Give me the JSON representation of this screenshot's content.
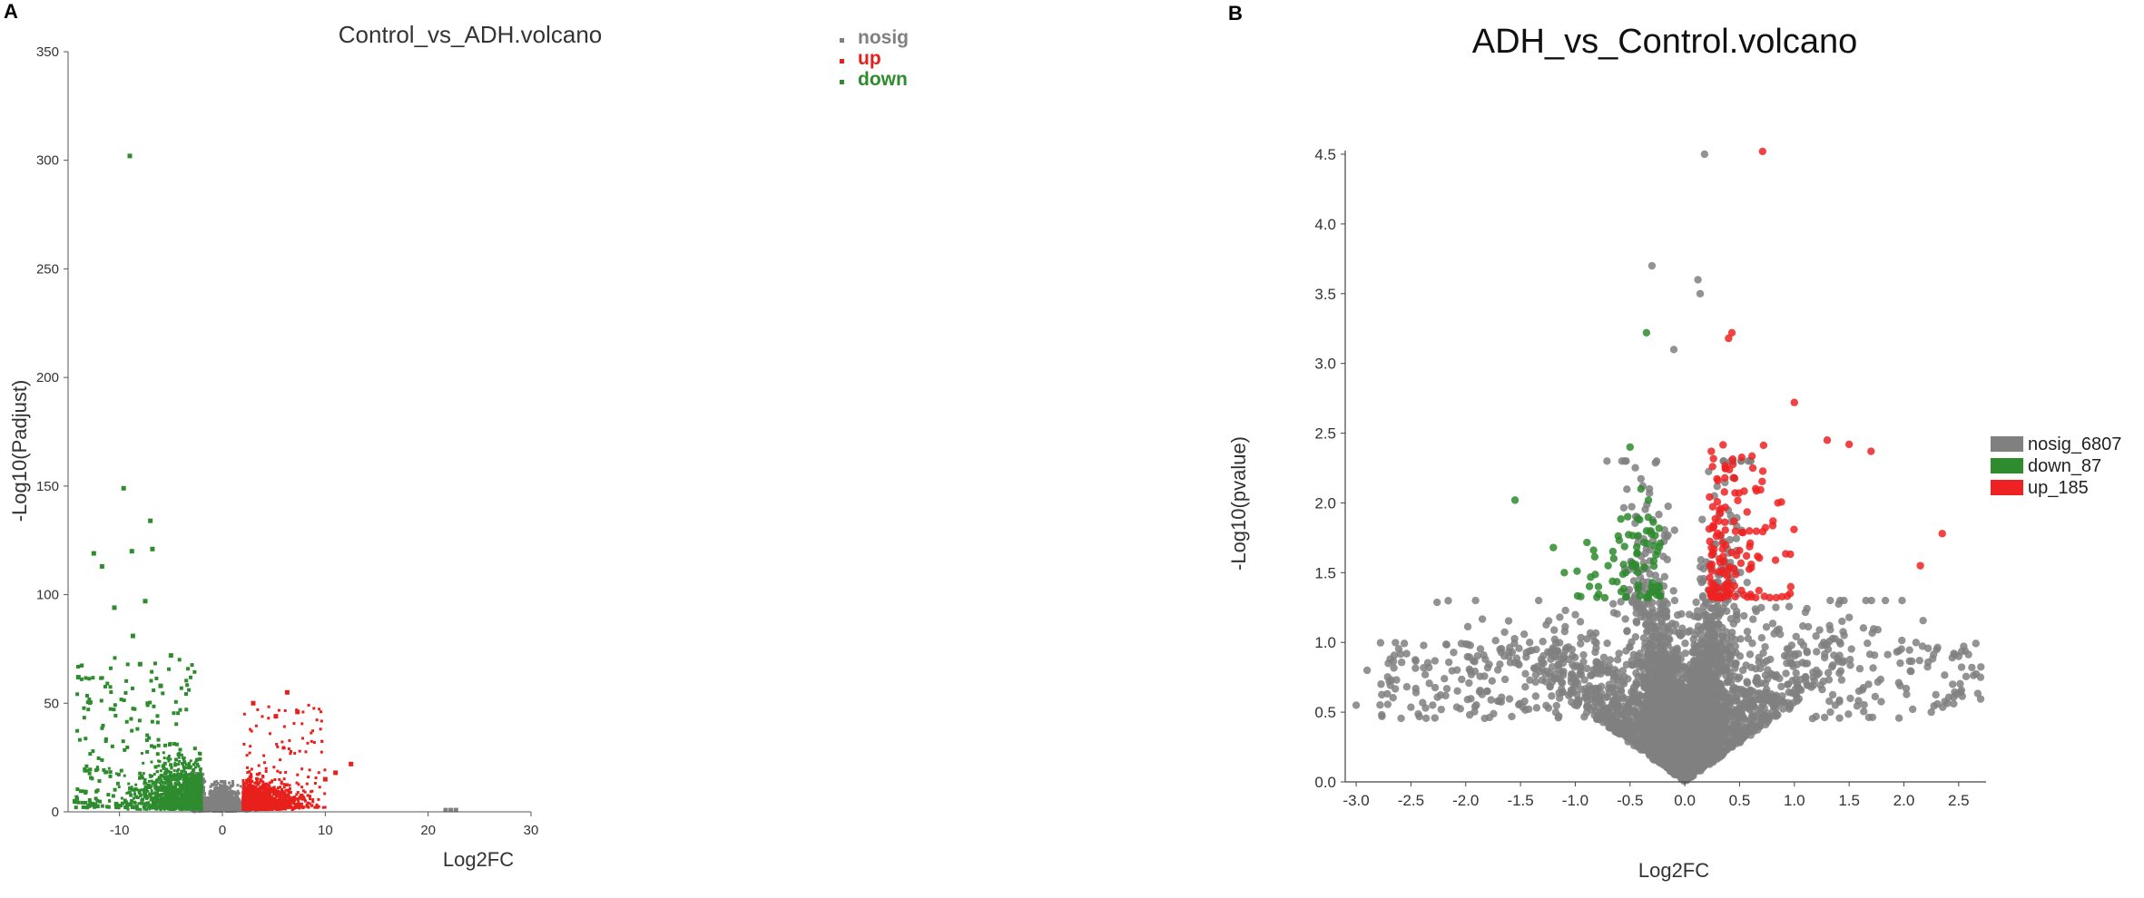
{
  "chart_data": [
    {
      "panel": "A",
      "type": "scatter",
      "title": "Control_vs_ADH.volcano",
      "xlabel": "Log2FC",
      "ylabel": "-Log10(Padjust)",
      "xlim": [
        -15,
        30
      ],
      "ylim": [
        0,
        350
      ],
      "xticks": [
        -10,
        0,
        10,
        20,
        30
      ],
      "yticks": [
        0,
        50,
        100,
        150,
        200,
        250,
        300,
        350
      ],
      "legend_position": "top-right",
      "series": [
        {
          "name": "nosig",
          "color": "#808080"
        },
        {
          "name": "up",
          "color": "#e8201c"
        },
        {
          "name": "down",
          "color": "#2e8b2e"
        }
      ],
      "highlight_points": {
        "down": [
          [
            -9,
            302
          ],
          [
            -9.6,
            149
          ],
          [
            -7,
            134
          ],
          [
            -12.5,
            119
          ],
          [
            -8.8,
            120
          ],
          [
            -11.7,
            113
          ],
          [
            -6.8,
            121
          ],
          [
            -10.5,
            94
          ],
          [
            -7.5,
            97
          ],
          [
            -8.7,
            81
          ],
          [
            -14,
            62
          ],
          [
            -5,
            72
          ],
          [
            -8,
            68
          ],
          [
            -6,
            58
          ]
        ],
        "up": [
          [
            6.3,
            55
          ],
          [
            3,
            50
          ],
          [
            7.3,
            46
          ],
          [
            5.2,
            44
          ],
          [
            12.5,
            22
          ],
          [
            11,
            18
          ],
          [
            10,
            15
          ]
        ],
        "nosig": [
          [
            21.7,
            0.8
          ],
          [
            22.2,
            0.8
          ],
          [
            22.7,
            0.8
          ]
        ]
      }
    },
    {
      "panel": "B",
      "type": "scatter",
      "title": "ADH_vs_Control.volcano",
      "xlabel": "Log2FC",
      "ylabel": "-Log10(pvalue)",
      "xlim": [
        -3.1,
        2.75
      ],
      "ylim": [
        0,
        4.5
      ],
      "xticks": [
        "-3.0",
        "-2.5",
        "-2.0",
        "-1.5",
        "-1.0",
        "-0.5",
        "0.0",
        "0.5",
        "1.0",
        "1.5",
        "2.0",
        "2.5"
      ],
      "yticks": [
        "0.0",
        "0.5",
        "1.0",
        "1.5",
        "2.0",
        "2.5",
        "3.0",
        "3.5",
        "4.0",
        "4.5"
      ],
      "legend_position": "right",
      "series": [
        {
          "name": "nosig_6807",
          "color": "#808080"
        },
        {
          "name": "down_87",
          "color": "#2e8b2e"
        },
        {
          "name": "up_185",
          "color": "#ee2222"
        }
      ],
      "highlight_points": {
        "nosig": [
          [
            0.18,
            4.5
          ],
          [
            -0.3,
            3.7
          ],
          [
            0.12,
            3.6
          ],
          [
            0.14,
            3.5
          ],
          [
            -0.1,
            3.1
          ],
          [
            -2.9,
            0.8
          ],
          [
            -3.0,
            0.55
          ],
          [
            2.5,
            0.9
          ],
          [
            2.7,
            0.75
          ],
          [
            2.25,
            0.5
          ]
        ],
        "up": [
          [
            0.71,
            4.52
          ],
          [
            0.43,
            3.22
          ],
          [
            0.4,
            3.18
          ],
          [
            1.0,
            2.72
          ],
          [
            1.3,
            2.45
          ],
          [
            1.5,
            2.42
          ],
          [
            1.7,
            2.37
          ],
          [
            2.35,
            1.78
          ],
          [
            2.15,
            1.55
          ],
          [
            0.85,
            2.0
          ]
        ],
        "down": [
          [
            -1.55,
            2.02
          ],
          [
            -0.35,
            3.22
          ],
          [
            -0.5,
            2.4
          ],
          [
            -0.4,
            2.1
          ],
          [
            -1.2,
            1.68
          ],
          [
            -1.1,
            1.5
          ],
          [
            -0.7,
            1.55
          ]
        ]
      }
    }
  ]
}
